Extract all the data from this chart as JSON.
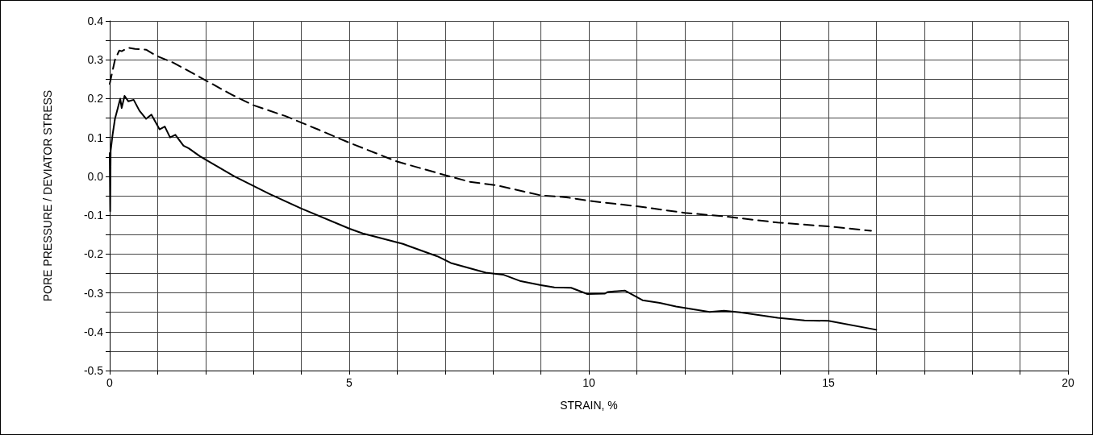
{
  "chart_data": {
    "type": "line",
    "xlabel": "STRAIN, %",
    "ylabel": "PORE PRESSURE / DEVIATOR STRESS",
    "xlim": [
      0,
      20
    ],
    "ylim": [
      -0.5,
      0.4
    ],
    "xticks": [
      0,
      {
        "value": 1,
        "label": null
      },
      {
        "value": 2,
        "label": null
      },
      {
        "value": 3,
        "label": null
      },
      {
        "value": 4,
        "label": null
      },
      5,
      {
        "value": 6,
        "label": null
      },
      {
        "value": 7,
        "label": null
      },
      {
        "value": 8,
        "label": null
      },
      {
        "value": 9,
        "label": null
      },
      10,
      {
        "value": 11,
        "label": null
      },
      {
        "value": 12,
        "label": null
      },
      {
        "value": 13,
        "label": null
      },
      {
        "value": 14,
        "label": null
      },
      15,
      {
        "value": 16,
        "label": null
      },
      {
        "value": 17,
        "label": null
      },
      {
        "value": 18,
        "label": null
      },
      {
        "value": 19,
        "label": null
      },
      20
    ],
    "yticks": [
      -0.5,
      {
        "value": -0.45,
        "label": null
      },
      -0.4,
      {
        "value": -0.35,
        "label": null
      },
      -0.3,
      {
        "value": -0.25,
        "label": null
      },
      -0.2,
      {
        "value": -0.15,
        "label": null
      },
      -0.1,
      {
        "value": -0.05,
        "label": null
      },
      {
        "value": 0,
        "label": "0.0"
      },
      {
        "value": 0.05,
        "label": null
      },
      0.1,
      {
        "value": 0.15,
        "label": null
      },
      0.2,
      {
        "value": 0.25,
        "label": null
      },
      0.3,
      {
        "value": 0.35,
        "label": null
      },
      0.4
    ],
    "grid": true,
    "marker": "none",
    "series": [
      {
        "color": "#000000",
        "line_style": "solid",
        "x": [
          0,
          0.01,
          0.02,
          0.06,
          0.11,
          0.17,
          0.22,
          0.25,
          0.31,
          0.39,
          0.5,
          0.62,
          0.76,
          0.87,
          1.04,
          1.15,
          1.26,
          1.37,
          1.54,
          1.65,
          1.88,
          2.21,
          2.6,
          3.33,
          4.0,
          5.01,
          5.28,
          6.12,
          6.84,
          7.12,
          7.85,
          8.21,
          8.58,
          9.0,
          9.28,
          9.63,
          9.97,
          10.33,
          10.39,
          10.75,
          11.12,
          11.48,
          11.82,
          12.52,
          12.82,
          13.16,
          13.94,
          14.5,
          15.0,
          16.0
        ],
        "values": [
          0.06,
          -0.09,
          0.066,
          0.107,
          0.148,
          0.176,
          0.2,
          0.176,
          0.207,
          0.193,
          0.197,
          0.169,
          0.148,
          0.159,
          0.121,
          0.128,
          0.1,
          0.107,
          0.079,
          0.072,
          0.052,
          0.028,
          0.0,
          -0.045,
          -0.083,
          -0.135,
          -0.147,
          -0.174,
          -0.206,
          -0.223,
          -0.248,
          -0.253,
          -0.27,
          -0.28,
          -0.286,
          -0.287,
          -0.303,
          -0.302,
          -0.298,
          -0.294,
          -0.319,
          -0.326,
          -0.335,
          -0.349,
          -0.346,
          -0.35,
          -0.364,
          -0.371,
          -0.372,
          -0.395
        ]
      },
      {
        "color": "#000000",
        "line_style": "dashed",
        "x": [
          0,
          0.05,
          0.11,
          0.2,
          0.25,
          0.39,
          0.53,
          0.76,
          0.98,
          1.32,
          1.99,
          2.55,
          3.0,
          3.67,
          4.34,
          5.01,
          6.0,
          7.0,
          7.51,
          8.07,
          9.0,
          9.53,
          10.0,
          11.0,
          12.0,
          12.82,
          13.94,
          15.0,
          15.89
        ],
        "values": [
          0.238,
          0.266,
          0.3,
          0.324,
          0.322,
          0.331,
          0.328,
          0.326,
          0.31,
          0.293,
          0.248,
          0.21,
          0.183,
          0.155,
          0.121,
          0.086,
          0.038,
          0.003,
          -0.014,
          -0.023,
          -0.049,
          -0.054,
          -0.063,
          -0.077,
          -0.094,
          -0.103,
          -0.119,
          -0.129,
          -0.14
        ]
      }
    ]
  }
}
